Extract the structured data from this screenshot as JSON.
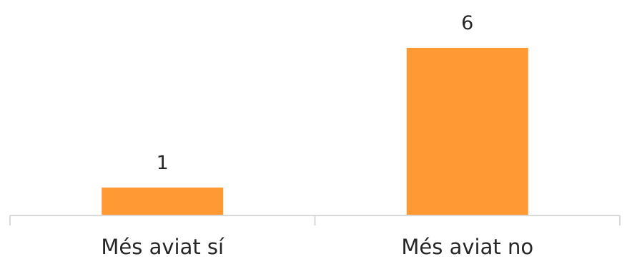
{
  "chart_data": {
    "type": "bar",
    "categories": [
      "Més aviat sí",
      "Més aviat no"
    ],
    "values": [
      1,
      6
    ],
    "data_labels": [
      "1",
      "6"
    ],
    "title": "",
    "xlabel": "",
    "ylabel": "",
    "ylim": [
      0,
      6
    ],
    "grid": false,
    "legend": "none",
    "colors": {
      "bar": "#FF9933",
      "axis": "#d9d9d9",
      "text": "#262626"
    }
  }
}
